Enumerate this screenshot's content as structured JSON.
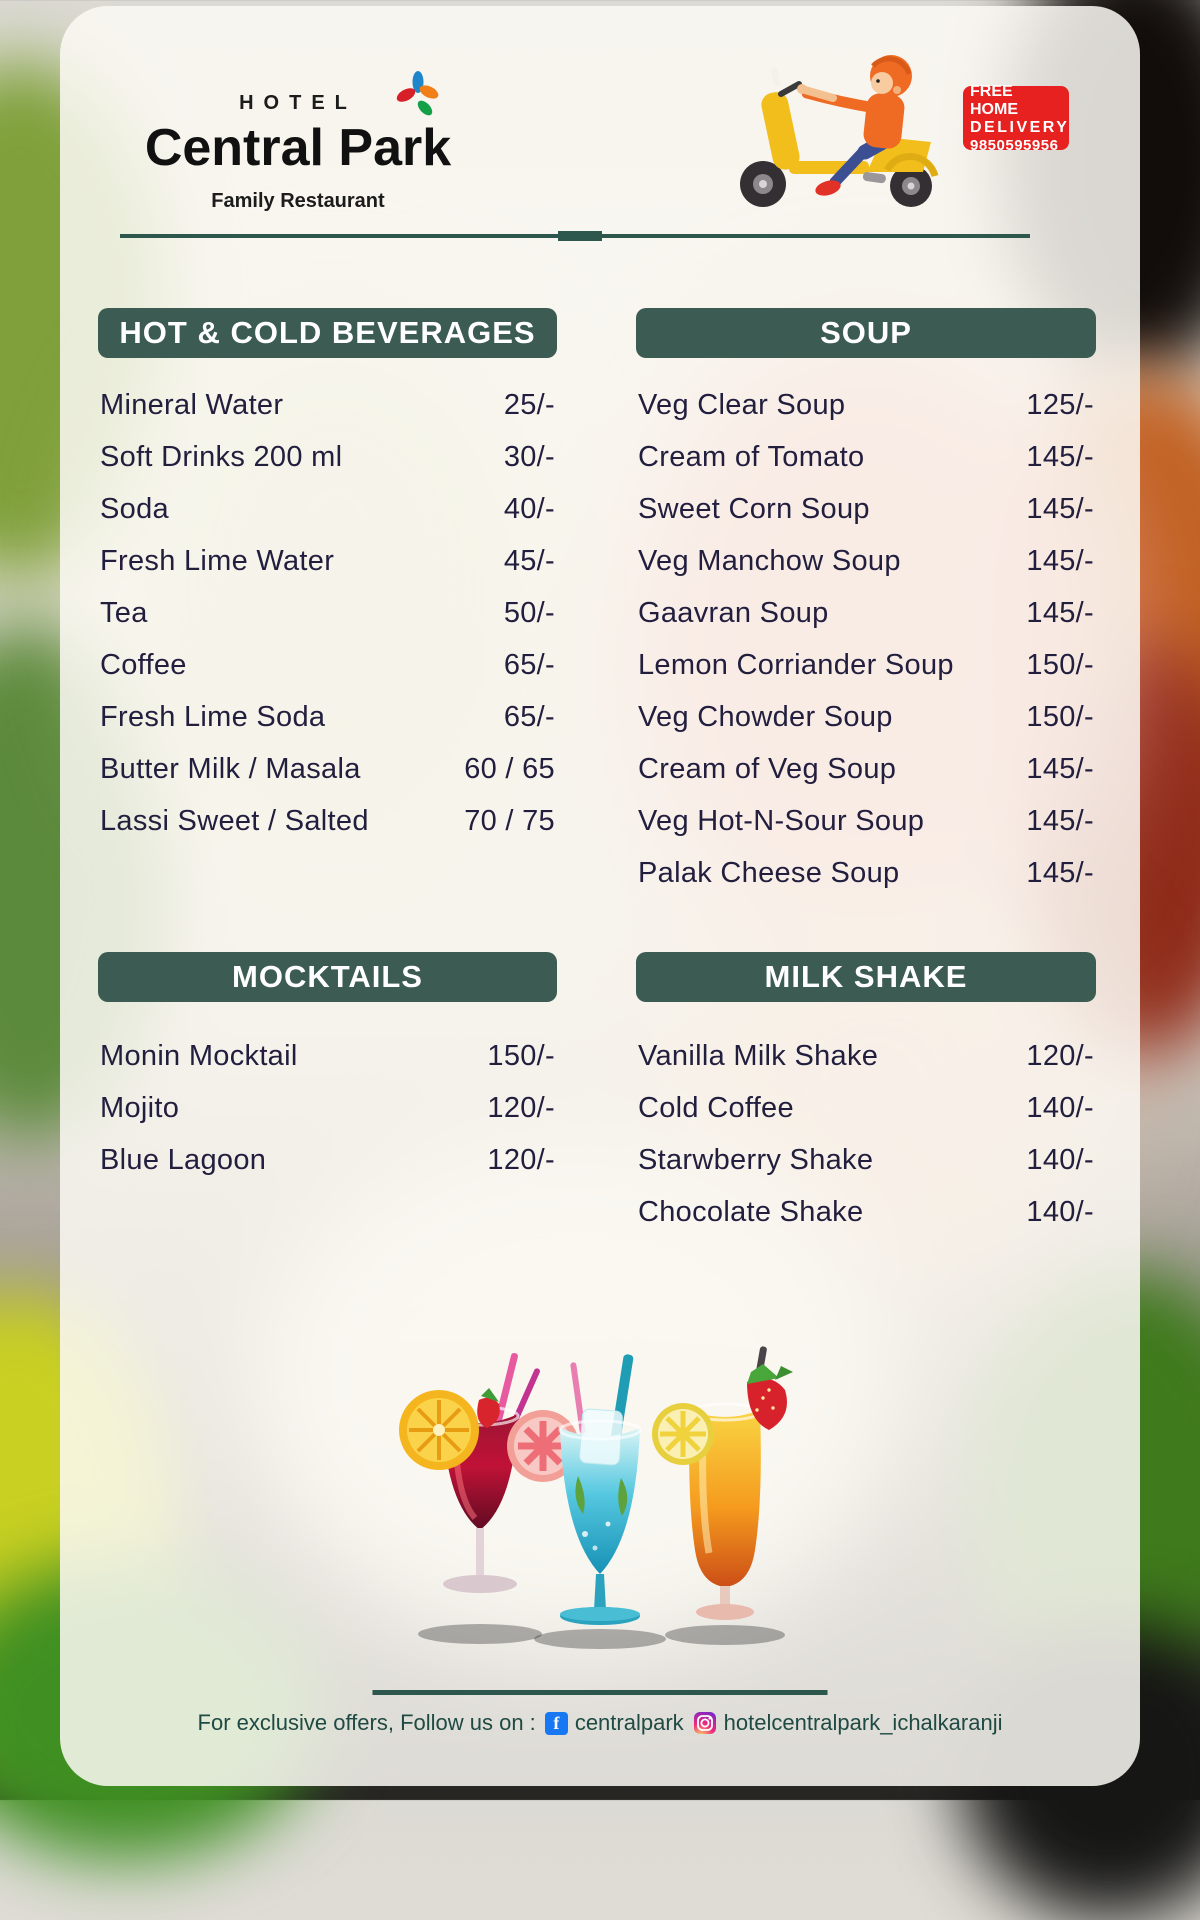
{
  "brand": {
    "hotel_label": "HOTEL",
    "name": "Central Park",
    "tagline": "Family Restaurant"
  },
  "delivery_badge": {
    "line1": "FREE HOME",
    "line2": "DELIVERY",
    "phone": "9850595956"
  },
  "menu": {
    "sections": [
      {
        "title": "HOT & COLD BEVERAGES",
        "items": [
          {
            "name": "Mineral Water",
            "price": "25/-"
          },
          {
            "name": "Soft Drinks 200 ml",
            "price": "30/-"
          },
          {
            "name": "Soda",
            "price": "40/-"
          },
          {
            "name": "Fresh Lime Water",
            "price": "45/-"
          },
          {
            "name": "Tea",
            "price": "50/-"
          },
          {
            "name": "Coffee",
            "price": "65/-"
          },
          {
            "name": "Fresh Lime Soda",
            "price": "65/-"
          },
          {
            "name": "Butter Milk / Masala",
            "price": "60 / 65"
          },
          {
            "name": "Lassi Sweet / Salted",
            "price": "70 / 75"
          }
        ]
      },
      {
        "title": "SOUP",
        "items": [
          {
            "name": "Veg Clear Soup",
            "price": "125/-"
          },
          {
            "name": "Cream of Tomato",
            "price": "145/-"
          },
          {
            "name": "Sweet Corn Soup",
            "price": "145/-"
          },
          {
            "name": "Veg Manchow Soup",
            "price": "145/-"
          },
          {
            "name": "Gaavran Soup",
            "price": "145/-"
          },
          {
            "name": "Lemon Corriander Soup",
            "price": "150/-"
          },
          {
            "name": "Veg Chowder Soup",
            "price": "150/-"
          },
          {
            "name": "Cream of Veg Soup",
            "price": "145/-"
          },
          {
            "name": "Veg Hot-N-Sour Soup",
            "price": "145/-"
          },
          {
            "name": "Palak Cheese Soup",
            "price": "145/-"
          }
        ]
      },
      {
        "title": "MOCKTAILS",
        "items": [
          {
            "name": "Monin Mocktail",
            "price": "150/-"
          },
          {
            "name": "Mojito",
            "price": "120/-"
          },
          {
            "name": "Blue Lagoon",
            "price": "120/-"
          }
        ]
      },
      {
        "title": "MILK SHAKE",
        "items": [
          {
            "name": "Vanilla Milk Shake",
            "price": "120/-"
          },
          {
            "name": "Cold Coffee",
            "price": "140/-"
          },
          {
            "name": "Starwberry Shake",
            "price": "140/-"
          },
          {
            "name": "Chocolate Shake",
            "price": "140/-"
          }
        ]
      }
    ]
  },
  "footer": {
    "prefix": "For exclusive offers, Follow us on  :",
    "facebook_handle": "centralpark",
    "instagram_handle": "hotelcentralpark_ichalkaranji"
  },
  "icons": {
    "logo_leaf": "leaf-icon",
    "scooter": "delivery-scooter-illustration",
    "facebook": "facebook-icon",
    "instagram": "instagram-icon",
    "drinks": "cocktail-glasses-illustration"
  },
  "colors": {
    "header_bar": "#3b5b53",
    "item_text": "#221e3e",
    "accent_red": "#e7211f",
    "divider": "#2d564c",
    "footer_text": "#1f4a44",
    "facebook_blue": "#1877f2",
    "scooter_yellow": "#f2be1c",
    "rider_orange": "#ef6b24"
  }
}
